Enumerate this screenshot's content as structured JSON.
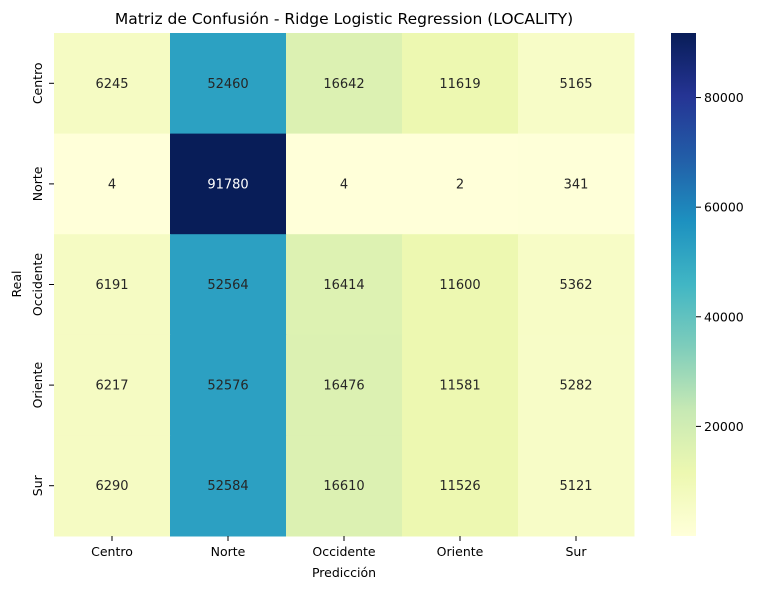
{
  "chart_data": {
    "type": "heatmap",
    "title": "Matriz de Confusión - Ridge Logistic Regression (LOCALITY)",
    "xlabel": "Predicción",
    "ylabel": "Real",
    "x_categories": [
      "Centro",
      "Norte",
      "Occidente",
      "Oriente",
      "Sur"
    ],
    "y_categories": [
      "Centro",
      "Norte",
      "Occidente",
      "Oriente",
      "Sur"
    ],
    "values": [
      [
        6245,
        52460,
        16642,
        11619,
        5165
      ],
      [
        4,
        91780,
        4,
        2,
        341
      ],
      [
        6191,
        52564,
        16414,
        11600,
        5362
      ],
      [
        6217,
        52576,
        16476,
        11581,
        5282
      ],
      [
        6290,
        52584,
        16610,
        11526,
        5121
      ]
    ],
    "colormap": "YlGnBu",
    "colorbar": {
      "range": [
        0,
        91780
      ],
      "ticks": [
        20000,
        40000,
        60000,
        80000
      ],
      "tick_labels": [
        "20000",
        "40000",
        "60000",
        "80000"
      ]
    }
  }
}
